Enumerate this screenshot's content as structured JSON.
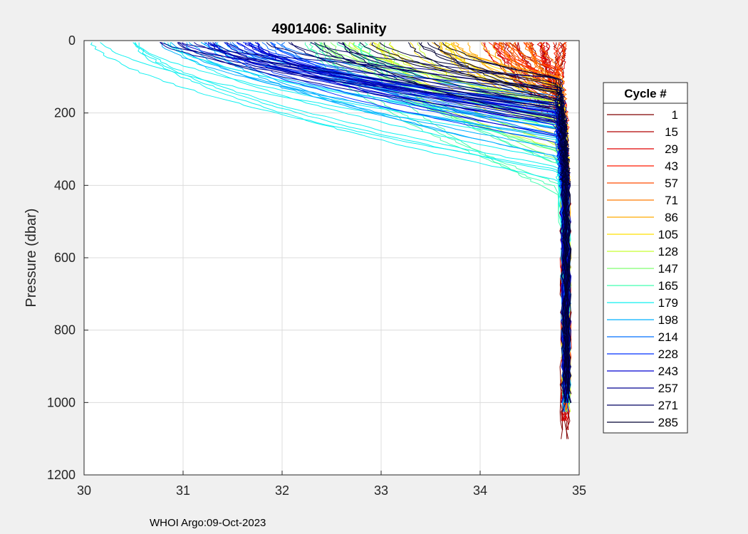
{
  "chart_data": {
    "type": "line",
    "title": "4901406:  Salinity",
    "xlabel": "",
    "ylabel": "Pressure (dbar)",
    "xlim": [
      30,
      35
    ],
    "ylim": [
      0,
      1200
    ],
    "y_reversed": true,
    "grid": true,
    "xticks": [
      30,
      31,
      32,
      33,
      34,
      35
    ],
    "yticks": [
      0,
      200,
      400,
      600,
      800,
      1000,
      1200
    ],
    "legend": {
      "title": "Cycle #",
      "placement": "right-outside",
      "entries": [
        {
          "label": "1",
          "color": "#800000"
        },
        {
          "label": "15",
          "color": "#b00000"
        },
        {
          "label": "29",
          "color": "#e00000"
        },
        {
          "label": "43",
          "color": "#ff1a00"
        },
        {
          "label": "57",
          "color": "#ff4a00"
        },
        {
          "label": "71",
          "color": "#ff7a00"
        },
        {
          "label": "86",
          "color": "#ffaa00"
        },
        {
          "label": "105",
          "color": "#ffe000"
        },
        {
          "label": "128",
          "color": "#c8ff30"
        },
        {
          "label": "147",
          "color": "#80ff70"
        },
        {
          "label": "165",
          "color": "#40ffb0"
        },
        {
          "label": "179",
          "color": "#10f0f0"
        },
        {
          "label": "198",
          "color": "#00b0ff"
        },
        {
          "label": "214",
          "color": "#0070ff"
        },
        {
          "label": "228",
          "color": "#0030ff"
        },
        {
          "label": "243",
          "color": "#0000d0"
        },
        {
          "label": "257",
          "color": "#000090"
        },
        {
          "label": "271",
          "color": "#000060"
        },
        {
          "label": "285",
          "color": "#000033"
        }
      ]
    },
    "series_groups": [
      {
        "cycle": "1",
        "color": "#800000",
        "surface_salinity": 34.62,
        "deep_salinity": 34.86,
        "thermocline_depth": 140,
        "max_pressure": 1085
      },
      {
        "cycle": "15",
        "color": "#b00000",
        "surface_salinity": 34.45,
        "deep_salinity": 34.87,
        "thermocline_depth": 160,
        "max_pressure": 1060
      },
      {
        "cycle": "29",
        "color": "#e00000",
        "surface_salinity": 34.55,
        "deep_salinity": 34.86,
        "thermocline_depth": 150,
        "max_pressure": 1040
      },
      {
        "cycle": "43",
        "color": "#ff1a00",
        "surface_salinity": 34.35,
        "deep_salinity": 34.87,
        "thermocline_depth": 140,
        "max_pressure": 1020
      },
      {
        "cycle": "57",
        "color": "#ff4a00",
        "surface_salinity": 34.5,
        "deep_salinity": 34.87,
        "thermocline_depth": 130,
        "max_pressure": 1015
      },
      {
        "cycle": "71",
        "color": "#ff7a00",
        "surface_salinity": 34.3,
        "deep_salinity": 34.87,
        "thermocline_depth": 120,
        "max_pressure": 1010
      },
      {
        "cycle": "86",
        "color": "#ffaa00",
        "surface_salinity": 33.7,
        "deep_salinity": 34.87,
        "thermocline_depth": 160,
        "max_pressure": 1005
      },
      {
        "cycle": "105",
        "color": "#ffe000",
        "surface_salinity": 33.3,
        "deep_salinity": 34.87,
        "thermocline_depth": 200,
        "max_pressure": 1005
      },
      {
        "cycle": "128",
        "color": "#c8ff30",
        "surface_salinity": 33.0,
        "deep_salinity": 34.87,
        "thermocline_depth": 230,
        "max_pressure": 1000
      },
      {
        "cycle": "147",
        "color": "#80ff70",
        "surface_salinity": 32.7,
        "deep_salinity": 34.87,
        "thermocline_depth": 270,
        "max_pressure": 1000
      },
      {
        "cycle": "165",
        "color": "#40ffb0",
        "surface_salinity": 32.4,
        "deep_salinity": 34.87,
        "thermocline_depth": 290,
        "max_pressure": 1000
      },
      {
        "cycle": "179",
        "color": "#10f0f0",
        "surface_salinity": 30.5,
        "deep_salinity": 34.87,
        "thermocline_depth": 260,
        "max_pressure": 1000
      },
      {
        "cycle": "198",
        "color": "#00b0ff",
        "surface_salinity": 31.2,
        "deep_salinity": 34.87,
        "thermocline_depth": 220,
        "max_pressure": 1000
      },
      {
        "cycle": "214",
        "color": "#0070ff",
        "surface_salinity": 31.8,
        "deep_salinity": 34.87,
        "thermocline_depth": 200,
        "max_pressure": 1000
      },
      {
        "cycle": "228",
        "color": "#0030ff",
        "surface_salinity": 31.6,
        "deep_salinity": 34.87,
        "thermocline_depth": 190,
        "max_pressure": 1000
      },
      {
        "cycle": "243",
        "color": "#0000d0",
        "surface_salinity": 31.4,
        "deep_salinity": 34.87,
        "thermocline_depth": 180,
        "max_pressure": 1000
      },
      {
        "cycle": "257",
        "color": "#000090",
        "surface_salinity": 31.0,
        "deep_salinity": 34.87,
        "thermocline_depth": 170,
        "max_pressure": 1000
      },
      {
        "cycle": "271",
        "color": "#000060",
        "surface_salinity": 32.2,
        "deep_salinity": 34.87,
        "thermocline_depth": 160,
        "max_pressure": 1000
      },
      {
        "cycle": "285",
        "color": "#000033",
        "surface_salinity": 33.2,
        "deep_salinity": 34.87,
        "thermocline_depth": 120,
        "max_pressure": 1000
      }
    ]
  },
  "footer": "WHOI Argo:09-Oct-2023"
}
